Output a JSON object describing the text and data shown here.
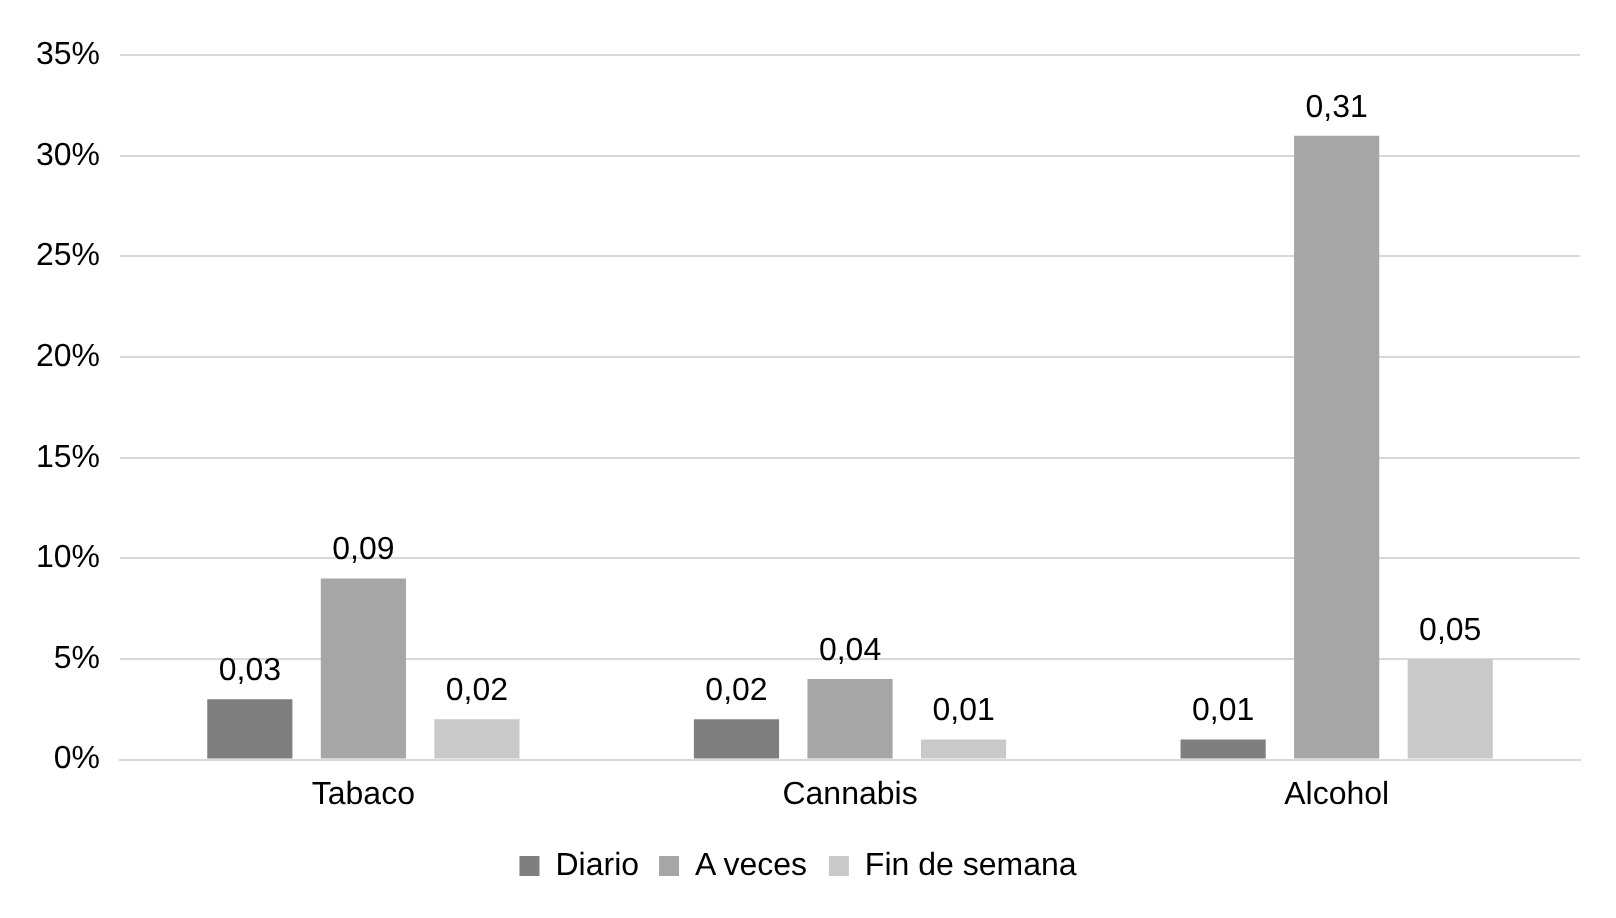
{
  "chart_data": {
    "type": "bar",
    "categories": [
      "Tabaco",
      "Cannabis",
      "Alcohol"
    ],
    "series": [
      {
        "name": "Diario",
        "color": "#7f7f7f",
        "values": [
          0.03,
          0.02,
          0.01
        ],
        "value_labels": [
          "0,03",
          "0,02",
          "0,01"
        ]
      },
      {
        "name": "A veces",
        "color": "#a6a6a6",
        "values": [
          0.09,
          0.04,
          0.31
        ],
        "value_labels": [
          "0,09",
          "0,04",
          "0,31"
        ]
      },
      {
        "name": "Fin de semana",
        "color": "#c9c9c9",
        "values": [
          0.02,
          0.01,
          0.05
        ],
        "value_labels": [
          "0,02",
          "0,01",
          "0,05"
        ]
      }
    ],
    "ylim": [
      0,
      0.35
    ],
    "yticks": [
      {
        "value": 0,
        "label": "0%"
      },
      {
        "value": 0.05,
        "label": "5%"
      },
      {
        "value": 0.1,
        "label": "10%"
      },
      {
        "value": 0.15,
        "label": "15%"
      },
      {
        "value": 0.2,
        "label": "20%"
      },
      {
        "value": 0.25,
        "label": "25%"
      },
      {
        "value": 0.3,
        "label": "30%"
      },
      {
        "value": 0.35,
        "label": "35%"
      }
    ],
    "grid": "y",
    "legend": "bottom"
  }
}
